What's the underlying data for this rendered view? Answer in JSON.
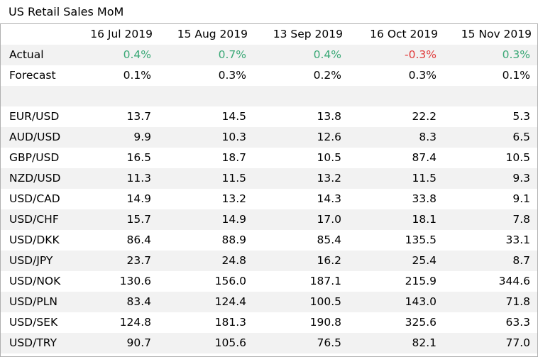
{
  "title": "US Retail Sales MoM",
  "colors": {
    "positive": "#3aa876",
    "negative": "#e03b3b",
    "stripe": "#f2f2f2"
  },
  "columns": [
    "16 Jul 2019",
    "15 Aug 2019",
    "13 Sep 2019",
    "16 Oct 2019",
    "15 Nov 2019"
  ],
  "actual": {
    "label": "Actual",
    "values": [
      "0.4%",
      "0.7%",
      "0.4%",
      "-0.3%",
      "0.3%"
    ]
  },
  "forecast": {
    "label": "Forecast",
    "values": [
      "0.1%",
      "0.3%",
      "0.2%",
      "0.3%",
      "0.1%"
    ]
  },
  "pairs": [
    {
      "label": "EUR/USD",
      "values": [
        "13.7",
        "14.5",
        "13.8",
        "22.2",
        "5.3"
      ]
    },
    {
      "label": "AUD/USD",
      "values": [
        "9.9",
        "10.3",
        "12.6",
        "8.3",
        "6.5"
      ]
    },
    {
      "label": "GBP/USD",
      "values": [
        "16.5",
        "18.7",
        "10.5",
        "87.4",
        "10.5"
      ]
    },
    {
      "label": "NZD/USD",
      "values": [
        "11.3",
        "11.5",
        "13.2",
        "11.5",
        "9.3"
      ]
    },
    {
      "label": "USD/CAD",
      "values": [
        "14.9",
        "13.2",
        "14.3",
        "33.8",
        "9.1"
      ]
    },
    {
      "label": "USD/CHF",
      "values": [
        "15.7",
        "14.9",
        "17.0",
        "18.1",
        "7.8"
      ]
    },
    {
      "label": "USD/DKK",
      "values": [
        "86.4",
        "88.9",
        "85.4",
        "135.5",
        "33.1"
      ]
    },
    {
      "label": "USD/JPY",
      "values": [
        "23.7",
        "24.8",
        "16.2",
        "25.4",
        "8.7"
      ]
    },
    {
      "label": "USD/NOK",
      "values": [
        "130.6",
        "156.0",
        "187.1",
        "215.9",
        "344.6"
      ]
    },
    {
      "label": "USD/PLN",
      "values": [
        "83.4",
        "124.4",
        "100.5",
        "143.0",
        "71.8"
      ]
    },
    {
      "label": "USD/SEK",
      "values": [
        "124.8",
        "181.3",
        "190.8",
        "325.6",
        "63.3"
      ]
    },
    {
      "label": "USD/TRY",
      "values": [
        "90.7",
        "105.6",
        "76.5",
        "82.1",
        "77.0"
      ]
    }
  ]
}
